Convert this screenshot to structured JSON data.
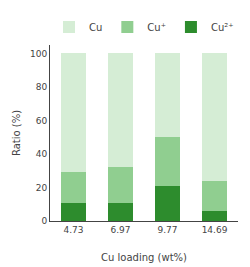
{
  "chart_data": {
    "type": "bar",
    "stacked": true,
    "xlabel": "Cu loading (wt%)",
    "ylabel": "Ratio (%)",
    "categories": [
      "4.73",
      "6.97",
      "9.77",
      "14.69"
    ],
    "series": [
      {
        "name": "Cu²⁺",
        "color": "#2d8c2d",
        "values": [
          11,
          11,
          21,
          6
        ]
      },
      {
        "name": "Cu⁺",
        "color": "#90ce90",
        "values": [
          18,
          21,
          29,
          18
        ]
      },
      {
        "name": "Cu",
        "color": "#d5edd5",
        "values": [
          71,
          68,
          50,
          76
        ]
      }
    ],
    "ylim": [
      0,
      105
    ],
    "yticks": [
      0,
      20,
      40,
      60,
      80,
      100
    ],
    "grid": false,
    "legend": "top"
  }
}
